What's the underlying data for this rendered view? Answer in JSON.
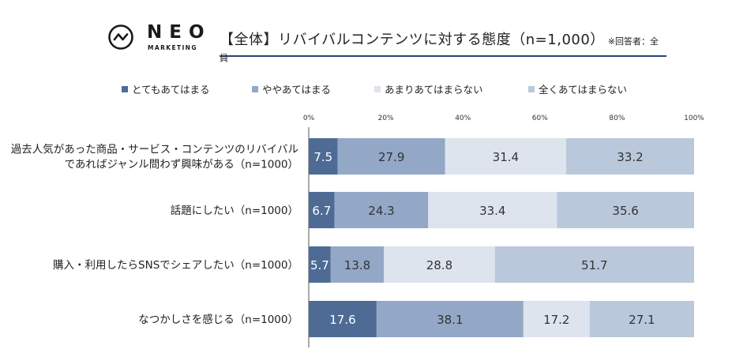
{
  "logo": {
    "name": "NEO",
    "tagline": "MARKETING"
  },
  "title": {
    "main": "【全体】リバイバルコンテンツに対する態度（n=1,000）",
    "note": "※回答者：全員"
  },
  "colors": {
    "s1": "#4e6b96",
    "s2": "#93a8c7",
    "s3": "#dde4ee",
    "s4": "#bac8db",
    "title_rule": "#26457a"
  },
  "chart_data": {
    "type": "bar",
    "orientation": "horizontal-stacked-100",
    "xlim": [
      0,
      100
    ],
    "x_ticks": [
      "0%",
      "20%",
      "40%",
      "60%",
      "80%",
      "100%"
    ],
    "legend_position": "top",
    "categories": [
      [
        "過去人気があった商品・サービス・コンテンツのリバイバル",
        "であればジャンル問わず興味がある（n=1000）"
      ],
      [
        "話題にしたい（n=1000）"
      ],
      [
        "購入・利用したらSNSでシェアしたい（n=1000）"
      ],
      [
        "なつかしさを感じる（n=1000）"
      ]
    ],
    "series": [
      {
        "name": "とてもあてはまる",
        "values": [
          7.5,
          6.7,
          5.7,
          17.6
        ]
      },
      {
        "name": "ややあてはまる",
        "values": [
          27.9,
          24.3,
          13.8,
          38.1
        ]
      },
      {
        "name": "あまりあてはまらない",
        "values": [
          31.4,
          33.4,
          28.8,
          17.2
        ]
      },
      {
        "name": "全くあてはまらない",
        "values": [
          33.2,
          35.6,
          51.7,
          27.1
        ]
      }
    ]
  }
}
